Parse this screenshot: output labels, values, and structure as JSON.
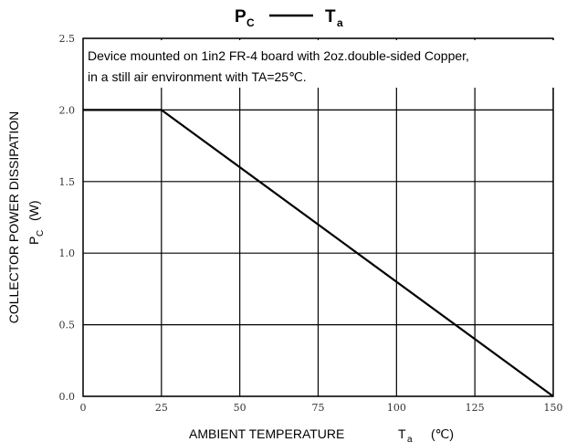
{
  "chart_data": {
    "type": "line",
    "title": {
      "main_1": "P",
      "sub_1": "C",
      "connector": "——",
      "main_2": "T",
      "sub_2": "a"
    },
    "ylabel": {
      "line1": "COLLECTOR POWER DISSIPATION",
      "line2_main": "P",
      "line2_sub": "C",
      "line2_unit": "(W)"
    },
    "xlabel": {
      "main": "AMBIENT TEMPERATURE",
      "symbol": "T",
      "sub": "a",
      "unit": "(℃)"
    },
    "annotation": {
      "line1": "Device mounted on 1in2 FR-4 board with 2oz.double-sided Copper,",
      "line2": "in a still air environment with TA=25℃."
    },
    "xlim": [
      0,
      150
    ],
    "ylim": [
      0,
      2.5
    ],
    "x_ticks": [
      0,
      25,
      50,
      75,
      100,
      125,
      150
    ],
    "y_ticks": [
      "0.0",
      "0.5",
      "1.0",
      "1.5",
      "2.0",
      "2.5"
    ],
    "grid": true,
    "series": [
      {
        "x": [
          0,
          25,
          150
        ],
        "y": [
          2.0,
          2.0,
          0.0
        ]
      }
    ]
  }
}
